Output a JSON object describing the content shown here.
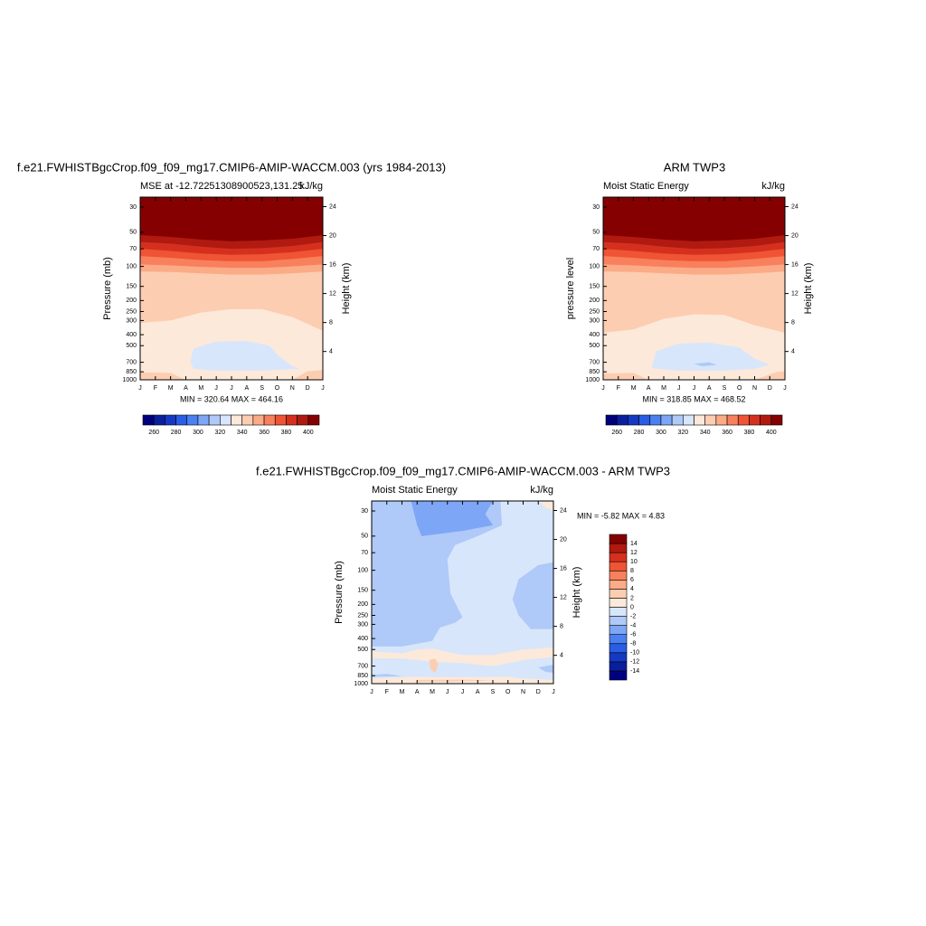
{
  "chart_data": [
    {
      "type": "contour",
      "title": "f.e21.FWHISTBgcCrop.f09_f09_mg17.CMIP6-AMIP-WACCM.003 (yrs 1984-2013)",
      "subtitle": "MSE at -12.72251308900523,131.25",
      "units": "kJ/kg",
      "stats": "MIN = 320.64 MAX = 464.16",
      "ylabel": "Pressure (mb)",
      "y2label": "Height (km)",
      "categories": [
        "J",
        "F",
        "M",
        "A",
        "M",
        "J",
        "J",
        "A",
        "S",
        "O",
        "N",
        "D",
        "J"
      ],
      "ylim": [
        1000,
        24.5
      ],
      "ylog": true,
      "yticks": [
        30,
        50,
        70,
        100,
        150,
        200,
        250,
        300,
        400,
        500,
        700,
        850,
        1000
      ],
      "y2ticks": [
        4,
        8,
        12,
        16,
        20,
        24
      ],
      "contour_x": [
        0,
        2,
        4,
        6,
        8,
        10,
        12
      ],
      "fills": [
        {
          "level": 330,
          "p": [
            1000,
            1000,
            1000,
            1000,
            1000,
            1000,
            1000
          ]
        },
        {
          "level": 340,
          "p": [
            315,
            300,
            255,
            238,
            238,
            280,
            370
          ]
        },
        {
          "level": 350,
          "p": [
            111,
            112,
            115,
            118,
            118,
            115,
            111
          ]
        },
        {
          "level": 360,
          "p": [
            96,
            98,
            101,
            103,
            103,
            100,
            96
          ]
        },
        {
          "level": 370,
          "p": [
            81,
            84,
            88,
            90,
            90,
            86,
            81
          ]
        },
        {
          "level": 380,
          "p": [
            70,
            73,
            77,
            79,
            78,
            75,
            70
          ]
        },
        {
          "level": 390,
          "p": [
            61,
            63,
            67,
            70,
            69,
            66,
            61
          ]
        },
        {
          "level": 400,
          "p": [
            53,
            55,
            58,
            60,
            59,
            57,
            53
          ]
        }
      ],
      "patches": [
        {
          "level": 320,
          "x": [
            3.3,
            3.5,
            5,
            7,
            8.5,
            9,
            10,
            10.5,
            8,
            5,
            3.5
          ],
          "p": [
            700,
            530,
            460,
            455,
            500,
            600,
            760,
            800,
            830,
            830,
            800
          ]
        },
        {
          "level": 340,
          "x": [
            0,
            2,
            3,
            0
          ],
          "p": [
            860,
            870,
            1000,
            1000
          ]
        },
        {
          "level": 340,
          "x": [
            10,
            11,
            12,
            12
          ],
          "p": [
            1000,
            840,
            820,
            1000
          ]
        }
      ],
      "colorbar": {
        "orientation": "horizontal",
        "levels": [
          260,
          270,
          280,
          290,
          300,
          310,
          320,
          330,
          340,
          350,
          360,
          370,
          380,
          390,
          400
        ],
        "ticks": [
          260,
          280,
          300,
          320,
          340,
          360,
          380,
          400
        ],
        "colors": [
          "#00007f",
          "#0a1f9e",
          "#1539c4",
          "#2a5de6",
          "#4a80f2",
          "#7ea6f6",
          "#afc9f8",
          "#d7e6fb",
          "#fde9d9",
          "#fdcdb1",
          "#fcab87",
          "#f9805c",
          "#ef5435",
          "#d5301e",
          "#b01a10",
          "#850000"
        ]
      }
    },
    {
      "type": "contour",
      "title": "ARM TWP3",
      "subtitle": "Moist Static Energy",
      "units": "kJ/kg",
      "stats": "MIN = 318.85 MAX = 468.52",
      "ylabel": "pressure level",
      "y2label": "Height (km)",
      "categories": [
        "J",
        "F",
        "M",
        "A",
        "M",
        "J",
        "J",
        "A",
        "S",
        "O",
        "N",
        "D",
        "J"
      ],
      "ylim": [
        1000,
        24.5
      ],
      "ylog": true,
      "yticks": [
        30,
        50,
        70,
        100,
        150,
        200,
        250,
        300,
        400,
        500,
        700,
        850,
        1000
      ],
      "y2ticks": [
        4,
        8,
        12,
        16,
        20,
        24
      ],
      "contour_x": [
        0,
        2,
        4,
        6,
        8,
        10,
        12
      ],
      "fills": [
        {
          "level": 330,
          "p": [
            1000,
            1000,
            1000,
            1000,
            1000,
            1000,
            1000
          ]
        },
        {
          "level": 340,
          "p": [
            385,
            360,
            290,
            265,
            268,
            330,
            385
          ]
        },
        {
          "level": 350,
          "p": [
            111,
            112,
            115,
            118,
            118,
            115,
            111
          ]
        },
        {
          "level": 360,
          "p": [
            96,
            98,
            101,
            103,
            103,
            100,
            96
          ]
        },
        {
          "level": 370,
          "p": [
            81,
            84,
            88,
            90,
            90,
            86,
            81
          ]
        },
        {
          "level": 380,
          "p": [
            70,
            73,
            77,
            79,
            78,
            75,
            70
          ]
        },
        {
          "level": 390,
          "p": [
            61,
            63,
            67,
            70,
            69,
            66,
            61
          ]
        },
        {
          "level": 400,
          "p": [
            53,
            55,
            58,
            60,
            59,
            57,
            53
          ]
        }
      ],
      "patches": [
        {
          "level": 320,
          "x": [
            3.2,
            3.5,
            5,
            7,
            9,
            10,
            11,
            10,
            8,
            5,
            3.5
          ],
          "p": [
            780,
            560,
            480,
            470,
            520,
            650,
            740,
            800,
            830,
            830,
            800
          ]
        },
        {
          "level": 310,
          "x": [
            6,
            7,
            7.5,
            6.5
          ],
          "p": [
            720,
            700,
            740,
            760
          ]
        },
        {
          "level": 340,
          "x": [
            0,
            2,
            3,
            0
          ],
          "p": [
            880,
            870,
            1000,
            1000
          ]
        },
        {
          "level": 340,
          "x": [
            10,
            11.5,
            12,
            12
          ],
          "p": [
            1000,
            850,
            840,
            1000
          ]
        }
      ],
      "colorbar": {
        "orientation": "horizontal",
        "levels": [
          260,
          270,
          280,
          290,
          300,
          310,
          320,
          330,
          340,
          350,
          360,
          370,
          380,
          390,
          400
        ],
        "ticks": [
          260,
          280,
          300,
          320,
          340,
          360,
          380,
          400
        ],
        "colors": [
          "#00007f",
          "#0a1f9e",
          "#1539c4",
          "#2a5de6",
          "#4a80f2",
          "#7ea6f6",
          "#afc9f8",
          "#d7e6fb",
          "#fde9d9",
          "#fdcdb1",
          "#fcab87",
          "#f9805c",
          "#ef5435",
          "#d5301e",
          "#b01a10",
          "#850000"
        ]
      }
    },
    {
      "type": "contour",
      "title": "f.e21.FWHISTBgcCrop.f09_f09_mg17.CMIP6-AMIP-WACCM.003 - ARM TWP3",
      "subtitle": "Moist Static Energy",
      "units": "kJ/kg",
      "stats": "MIN =  -5.82 MAX =   4.83",
      "ylabel": "Pressure (mb)",
      "y2label": "Height (km)",
      "categories": [
        "J",
        "F",
        "M",
        "A",
        "M",
        "J",
        "J",
        "A",
        "S",
        "O",
        "N",
        "D",
        "J"
      ],
      "ylim": [
        1000,
        24.5
      ],
      "ylog": true,
      "yticks": [
        30,
        50,
        70,
        100,
        150,
        200,
        250,
        300,
        400,
        500,
        700,
        850,
        1000
      ],
      "y2ticks": [
        4,
        8,
        12,
        16,
        20,
        24
      ],
      "contour_x": [
        0,
        12
      ],
      "fills": [
        {
          "level": -1,
          "p": [
            1000,
            1000
          ]
        }
      ],
      "patches": [
        {
          "level": -3,
          "x": [
            0,
            8.5,
            8.6,
            7,
            5.5,
            5,
            5.2,
            6,
            5.5,
            4.5,
            4,
            2,
            0
          ],
          "p": [
            24.5,
            24.5,
            40,
            50,
            60,
            80,
            160,
            260,
            290,
            320,
            420,
            470,
            470
          ]
        },
        {
          "level": -3,
          "x": [
            9.7,
            11,
            12,
            12,
            10.5,
            9.7,
            9.3
          ],
          "p": [
            120,
            90,
            85,
            330,
            330,
            250,
            180
          ]
        },
        {
          "level": -3,
          "x": [
            11,
            12,
            12,
            11.5
          ],
          "p": [
            720,
            680,
            800,
            790
          ]
        },
        {
          "level": -3,
          "x": [
            0,
            1,
            2,
            0
          ],
          "p": [
            840,
            820,
            860,
            870
          ]
        },
        {
          "level": -5,
          "x": [
            2.6,
            8,
            7.5,
            8,
            6,
            3.3,
            3
          ],
          "p": [
            24.5,
            24.5,
            32,
            40,
            45,
            50,
            40
          ]
        },
        {
          "level": 1,
          "x": [
            0,
            2,
            3,
            4,
            6,
            8,
            10,
            12,
            12,
            10,
            8,
            6,
            4,
            2,
            0
          ],
          "p": [
            520,
            540,
            500,
            490,
            560,
            560,
            500,
            480,
            580,
            620,
            700,
            660,
            640,
            600,
            600
          ]
        },
        {
          "level": 1,
          "x": [
            0,
            0,
            3,
            6,
            9,
            10,
            12,
            12
          ],
          "p": [
            1000,
            900,
            870,
            880,
            870,
            900,
            930,
            1000
          ]
        },
        {
          "level": 1,
          "x": [
            11,
            12,
            12,
            11.5
          ],
          "p": [
            24.5,
            24.5,
            30,
            28
          ]
        },
        {
          "level": 3,
          "x": [
            3.8,
            4.2,
            4.4,
            4.2,
            3.9
          ],
          "p": [
            620,
            600,
            680,
            800,
            760
          ]
        },
        {
          "level": 3,
          "x": [
            3,
            6,
            8,
            5,
            3
          ],
          "p": [
            930,
            920,
            940,
            960,
            960
          ]
        }
      ],
      "colorbar": {
        "orientation": "vertical",
        "levels": [
          -14,
          -12,
          -10,
          -8,
          -6,
          -4,
          -2,
          0,
          2,
          4,
          6,
          8,
          10,
          12,
          14
        ],
        "ticks": [
          -14,
          -12,
          -10,
          -8,
          -6,
          -4,
          -2,
          0,
          2,
          4,
          6,
          8,
          10,
          12,
          14
        ],
        "colors": [
          "#00007f",
          "#0a1f9e",
          "#1539c4",
          "#2a5de6",
          "#4a80f2",
          "#7ea6f6",
          "#afc9f8",
          "#d7e6fb",
          "#fde9d9",
          "#fdcdb1",
          "#fcab87",
          "#f9805c",
          "#ef5435",
          "#d5301e",
          "#b01a10",
          "#850000"
        ]
      }
    }
  ]
}
